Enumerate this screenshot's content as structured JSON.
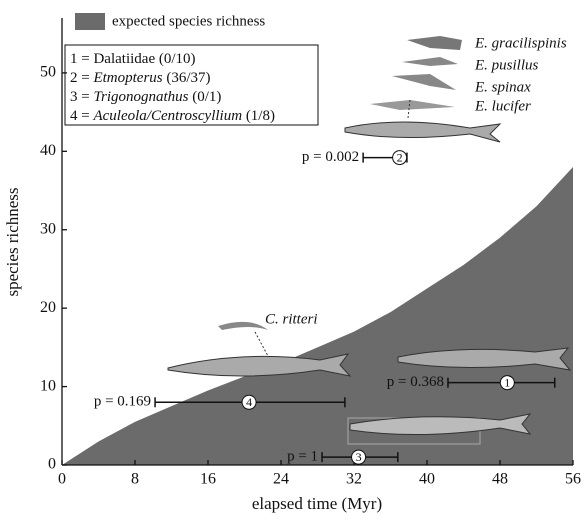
{
  "chart_data": {
    "type": "area",
    "x_label": "elapsed time (Myr)",
    "y_label": "species richness",
    "xlim": [
      0,
      56
    ],
    "ylim": [
      0,
      57
    ],
    "xticks": [
      0,
      8,
      16,
      24,
      32,
      40,
      48,
      56
    ],
    "yticks": [
      0,
      10,
      20,
      30,
      40,
      50
    ],
    "series": [
      {
        "name": "expected species richness",
        "color": "#6b6b6b",
        "x": [
          0,
          2,
          4,
          8,
          12,
          16,
          20,
          24,
          28,
          32,
          36,
          40,
          44,
          48,
          52,
          56
        ],
        "values": [
          0,
          1.5,
          3,
          5.5,
          7.5,
          9.5,
          11.3,
          13,
          15,
          17,
          19.5,
          22.5,
          25.5,
          29,
          33,
          38
        ]
      }
    ],
    "clade_key": [
      {
        "number": "1 =",
        "name": "Dalatiidae",
        "count": "(0/10)",
        "italic": false
      },
      {
        "number": "2 =",
        "name": "Etmopterus",
        "count": "(36/37)",
        "italic": true
      },
      {
        "number": "3 =",
        "name": "Trigonognathus",
        "count": "(0/1)",
        "italic": true
      },
      {
        "number": "4 =",
        "name": "Aculeola/Centroscyllium",
        "count": "(1/8)",
        "italic": true
      }
    ],
    "intervals": [
      {
        "id": "1",
        "p_label": "p = 0.368",
        "y": 10.5,
        "low": 42.3,
        "high": 54,
        "center": 48.8
      },
      {
        "id": "2",
        "p_label": "p = 0.002",
        "y": 39.2,
        "low": 33,
        "high": 37.8,
        "center": 37
      },
      {
        "id": "4",
        "p_label": "p = 0.169",
        "y": 8,
        "low": 10.2,
        "high": 31,
        "center": 20.5
      },
      {
        "id": "3",
        "p_label": "p = 1",
        "y": 1,
        "low": 28.5,
        "high": 36.8,
        "center": 32.5
      }
    ],
    "species_labels": [
      "E. gracilispinis",
      "E. pusillus",
      "E. spinax",
      "E. lucifer",
      "C. ritteri"
    ]
  }
}
